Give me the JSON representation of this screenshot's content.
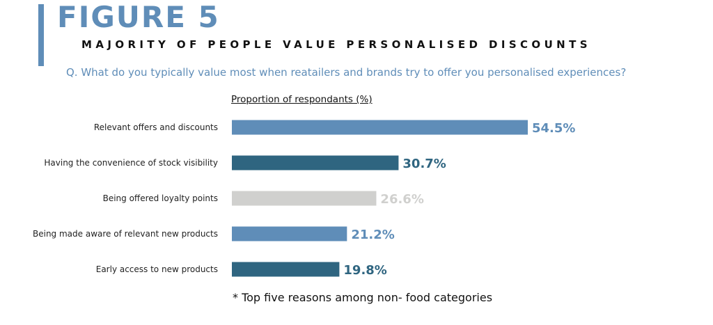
{
  "header": {
    "figure_title": "FIGURE 5",
    "subtitle": "MAJORITY OF PEOPLE VALUE PERSONALISED DISCOUNTS",
    "question": "Q. What do you typically value most when reatailers and brands try to offer you personalised experiences?"
  },
  "colors": {
    "accent": "#5f8db8",
    "steel_blue": "#5f8db8",
    "dark_teal": "#2f6580",
    "light_gray": "#d0d0ce"
  },
  "chart_data": {
    "type": "bar",
    "orientation": "horizontal",
    "title": "",
    "xlabel": "Proportion of respondants (%)",
    "ylabel": "",
    "xlim": [
      0,
      54.5
    ],
    "grid": false,
    "categories": [
      "Relevant offers and discounts",
      "Having the convenience of stock visibility",
      "Being offered loyalty points",
      "Being made aware of relevant new products",
      "Early access to new products"
    ],
    "values": [
      54.5,
      30.7,
      26.6,
      21.2,
      19.8
    ],
    "value_labels": [
      "54.5%",
      "30.7%",
      "26.6%",
      "21.2%",
      "19.8%"
    ],
    "bar_colors": [
      "#5f8db8",
      "#2f6580",
      "#d0d0ce",
      "#5f8db8",
      "#2f6580"
    ]
  },
  "footnote": "* Top five reasons among non- food categories"
}
